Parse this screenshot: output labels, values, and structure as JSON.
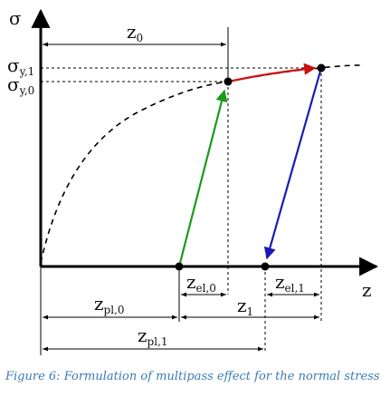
{
  "labels": {
    "sigma_axis": "σ",
    "z_axis": "z",
    "sigma_y1": {
      "base": "σ",
      "sub": "y,1"
    },
    "sigma_y0": {
      "base": "σ",
      "sub": "y,0"
    },
    "z0": {
      "base": "z",
      "sub": "0"
    },
    "z1": {
      "base": "z",
      "sub": "1"
    },
    "z_el0": {
      "base": "z",
      "sub": "el,0"
    },
    "z_el1": {
      "base": "z",
      "sub": "el,1"
    },
    "z_pl0": {
      "base": "z",
      "sub": "pl,0"
    },
    "z_pl1": {
      "base": "z",
      "sub": "pl,1"
    }
  },
  "caption": "Figure 6: Formulation of multipass effect for the normal stress",
  "colors": {
    "axes": "#000000",
    "hardening_curve": "#000000",
    "elastic_loading": "#1a9a1a",
    "plastic_increment": "#cc1111",
    "elastic_unloading": "#1a1ab8",
    "caption": "#3a7ab8"
  }
}
